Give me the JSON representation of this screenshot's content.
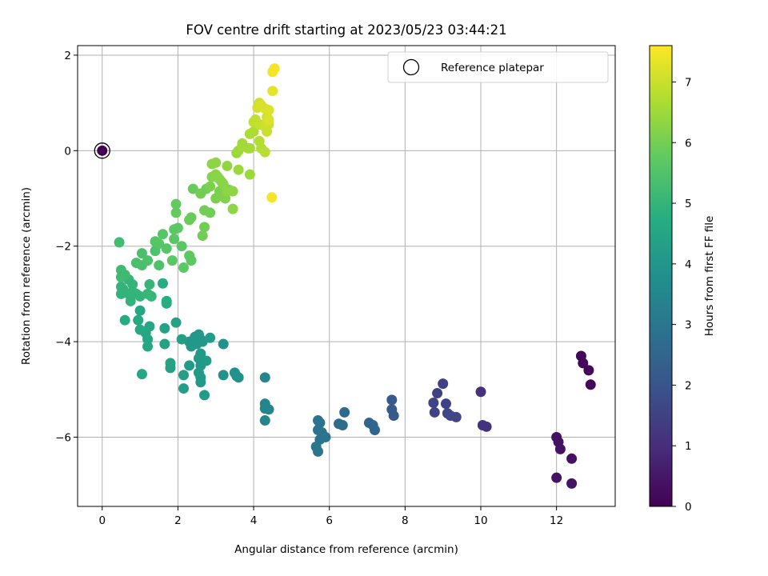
{
  "chart_data": {
    "type": "scatter",
    "title": "FOV centre drift starting at 2023/05/23 03:44:21",
    "xlabel": "Angular distance from reference (arcmin)",
    "ylabel": "Rotation from reference (arcmin)",
    "xlim": [
      -0.65,
      13.55
    ],
    "ylim": [
      -7.45,
      2.2
    ],
    "xticks": [
      0,
      2,
      4,
      6,
      8,
      10,
      12
    ],
    "yticks": [
      -6,
      -4,
      -2,
      0,
      2
    ],
    "grid": true,
    "legend": {
      "placement": "top-right",
      "entries": [
        "Reference platepar"
      ]
    },
    "colorbar": {
      "label": "Hours from first FF file",
      "range": [
        0,
        7.6
      ],
      "ticks": [
        0,
        1,
        2,
        3,
        4,
        5,
        6,
        7
      ],
      "colormap": "viridis"
    },
    "reference_point": {
      "x": 0,
      "y": 0
    },
    "points": [
      [
        0.0,
        0.0,
        0.0
      ],
      [
        12.65,
        -4.3,
        0.15
      ],
      [
        12.7,
        -4.45,
        0.15
      ],
      [
        12.85,
        -4.6,
        0.15
      ],
      [
        12.9,
        -4.9,
        0.15
      ],
      [
        12.0,
        -6.0,
        0.35
      ],
      [
        12.05,
        -6.1,
        0.35
      ],
      [
        12.1,
        -6.25,
        0.35
      ],
      [
        12.4,
        -6.45,
        0.35
      ],
      [
        12.0,
        -6.85,
        0.4
      ],
      [
        12.4,
        -6.97,
        0.4
      ],
      [
        10.0,
        -5.05,
        1.1
      ],
      [
        10.05,
        -5.75,
        1.1
      ],
      [
        10.15,
        -5.78,
        1.1
      ],
      [
        9.0,
        -4.88,
        1.5
      ],
      [
        8.85,
        -5.08,
        1.5
      ],
      [
        8.75,
        -5.28,
        1.55
      ],
      [
        8.78,
        -5.48,
        1.55
      ],
      [
        9.08,
        -5.3,
        1.55
      ],
      [
        9.12,
        -5.5,
        1.6
      ],
      [
        9.2,
        -5.55,
        1.6
      ],
      [
        9.35,
        -5.58,
        1.6
      ],
      [
        7.65,
        -5.22,
        2.15
      ],
      [
        7.65,
        -5.42,
        2.15
      ],
      [
        7.7,
        -5.55,
        2.15
      ],
      [
        7.05,
        -5.7,
        2.5
      ],
      [
        7.15,
        -5.75,
        2.5
      ],
      [
        7.2,
        -5.85,
        2.5
      ],
      [
        6.4,
        -5.48,
        2.7
      ],
      [
        6.25,
        -5.72,
        2.7
      ],
      [
        6.35,
        -5.75,
        2.7
      ],
      [
        5.7,
        -5.65,
        2.9
      ],
      [
        5.75,
        -5.7,
        2.9
      ],
      [
        5.8,
        -5.9,
        2.9
      ],
      [
        5.7,
        -5.85,
        2.9
      ],
      [
        5.9,
        -6.0,
        2.95
      ],
      [
        5.75,
        -6.05,
        2.95
      ],
      [
        5.65,
        -6.2,
        3.0
      ],
      [
        5.7,
        -6.3,
        3.0
      ],
      [
        4.3,
        -4.75,
        3.45
      ],
      [
        4.3,
        -5.3,
        3.5
      ],
      [
        4.3,
        -5.4,
        3.5
      ],
      [
        4.4,
        -5.42,
        3.5
      ],
      [
        4.3,
        -5.65,
        3.5
      ],
      [
        3.2,
        -4.05,
        3.85
      ],
      [
        3.2,
        -4.7,
        3.85
      ],
      [
        3.5,
        -4.65,
        3.85
      ],
      [
        3.6,
        -4.75,
        3.85
      ],
      [
        3.55,
        -4.72,
        3.85
      ],
      [
        2.45,
        -3.9,
        4.05
      ],
      [
        2.55,
        -3.85,
        4.05
      ],
      [
        2.6,
        -3.95,
        4.05
      ],
      [
        2.5,
        -4.05,
        4.05
      ],
      [
        2.35,
        -4.1,
        4.05
      ],
      [
        2.3,
        -4.0,
        4.05
      ],
      [
        2.65,
        -4.0,
        4.05
      ],
      [
        2.6,
        -4.25,
        4.1
      ],
      [
        2.55,
        -4.35,
        4.1
      ],
      [
        2.6,
        -4.5,
        4.1
      ],
      [
        2.55,
        -4.65,
        4.1
      ],
      [
        2.6,
        -4.75,
        4.1
      ],
      [
        2.6,
        -4.85,
        4.1
      ],
      [
        2.3,
        -4.5,
        4.1
      ],
      [
        2.85,
        -3.92,
        4.15
      ],
      [
        2.75,
        -4.4,
        4.15
      ],
      [
        2.7,
        -5.12,
        4.15
      ],
      [
        2.1,
        -3.95,
        4.3
      ],
      [
        2.15,
        -4.7,
        4.3
      ],
      [
        2.15,
        -4.98,
        4.3
      ],
      [
        1.8,
        -4.45,
        4.4
      ],
      [
        1.8,
        -4.55,
        4.4
      ],
      [
        1.65,
        -4.05,
        4.4
      ],
      [
        1.65,
        -3.72,
        4.4
      ],
      [
        1.95,
        -3.6,
        4.4
      ],
      [
        1.15,
        -3.82,
        4.55
      ],
      [
        1.2,
        -3.95,
        4.55
      ],
      [
        1.2,
        -4.1,
        4.55
      ],
      [
        1.05,
        -4.68,
        4.55
      ],
      [
        1.25,
        -3.68,
        4.55
      ],
      [
        1.0,
        -3.35,
        4.55
      ],
      [
        1.0,
        -3.75,
        4.6
      ],
      [
        0.95,
        -3.55,
        4.6
      ],
      [
        0.6,
        -3.55,
        4.7
      ],
      [
        1.6,
        -2.78,
        4.75
      ],
      [
        1.7,
        -3.15,
        4.75
      ],
      [
        1.7,
        -3.2,
        4.75
      ],
      [
        0.5,
        -2.85,
        4.95
      ],
      [
        0.5,
        -3.0,
        4.95
      ],
      [
        0.55,
        -2.9,
        4.95
      ],
      [
        0.75,
        -3.15,
        4.95
      ],
      [
        0.7,
        -3.0,
        4.95
      ],
      [
        0.8,
        -2.95,
        5.0
      ],
      [
        0.9,
        -3.0,
        5.0
      ],
      [
        0.8,
        -2.8,
        5.0
      ],
      [
        0.7,
        -2.7,
        5.0
      ],
      [
        1.0,
        -3.05,
        5.0
      ],
      [
        1.2,
        -3.0,
        5.05
      ],
      [
        1.3,
        -3.05,
        5.05
      ],
      [
        1.25,
        -2.8,
        5.05
      ],
      [
        0.5,
        -2.5,
        5.2
      ],
      [
        0.5,
        -2.65,
        5.2
      ],
      [
        0.6,
        -2.6,
        5.2
      ],
      [
        0.45,
        -1.92,
        5.25
      ],
      [
        0.9,
        -2.35,
        5.4
      ],
      [
        1.05,
        -2.15,
        5.4
      ],
      [
        1.05,
        -2.4,
        5.4
      ],
      [
        1.2,
        -2.3,
        5.45
      ],
      [
        1.4,
        -2.1,
        5.45
      ],
      [
        1.5,
        -2.4,
        5.45
      ],
      [
        1.4,
        -1.9,
        5.6
      ],
      [
        1.5,
        -1.95,
        5.6
      ],
      [
        1.6,
        -1.75,
        5.6
      ],
      [
        1.7,
        -2.05,
        5.6
      ],
      [
        1.9,
        -1.85,
        5.65
      ],
      [
        1.85,
        -2.3,
        5.65
      ],
      [
        2.1,
        -2.0,
        5.65
      ],
      [
        1.9,
        -1.65,
        5.7
      ],
      [
        2.0,
        -1.62,
        5.7
      ],
      [
        2.15,
        -2.45,
        5.7
      ],
      [
        2.3,
        -2.2,
        5.7
      ],
      [
        2.35,
        -2.3,
        5.7
      ],
      [
        1.95,
        -1.12,
        5.8
      ],
      [
        1.95,
        -1.3,
        5.8
      ],
      [
        2.3,
        -1.45,
        5.85
      ],
      [
        2.35,
        -1.4,
        5.85
      ],
      [
        2.4,
        -0.8,
        5.85
      ],
      [
        2.6,
        -0.9,
        5.95
      ],
      [
        2.7,
        -1.25,
        5.95
      ],
      [
        2.75,
        -0.8,
        5.95
      ],
      [
        2.85,
        -1.3,
        5.95
      ],
      [
        2.7,
        -1.6,
        5.95
      ],
      [
        2.65,
        -1.78,
        5.95
      ],
      [
        2.85,
        -0.75,
        6.1
      ],
      [
        3.0,
        -1.0,
        6.1
      ],
      [
        3.05,
        -0.55,
        6.1
      ],
      [
        3.1,
        -0.85,
        6.1
      ],
      [
        3.15,
        -0.65,
        6.15
      ],
      [
        3.35,
        -0.82,
        6.15
      ],
      [
        3.25,
        -1.0,
        6.15
      ],
      [
        2.9,
        -0.55,
        6.2
      ],
      [
        3.0,
        -0.5,
        6.25
      ],
      [
        3.1,
        -0.6,
        6.25
      ],
      [
        3.2,
        -0.7,
        6.25
      ],
      [
        3.3,
        -0.85,
        6.3
      ],
      [
        3.45,
        -0.85,
        6.3
      ],
      [
        3.45,
        -1.22,
        6.3
      ],
      [
        2.9,
        -0.28,
        6.3
      ],
      [
        3.0,
        -0.25,
        6.3
      ],
      [
        3.3,
        -0.32,
        6.35
      ],
      [
        3.55,
        -0.05,
        6.4
      ],
      [
        3.6,
        -0.4,
        6.45
      ],
      [
        3.9,
        -0.5,
        6.45
      ],
      [
        3.6,
        0.0,
        6.5
      ],
      [
        3.7,
        0.1,
        6.55
      ],
      [
        3.7,
        0.15,
        6.55
      ],
      [
        3.9,
        0.05,
        6.6
      ],
      [
        3.85,
        0.05,
        6.6
      ],
      [
        4.0,
        0.4,
        6.7
      ],
      [
        3.9,
        0.35,
        6.7
      ],
      [
        4.15,
        0.2,
        6.75
      ],
      [
        4.2,
        0.05,
        6.75
      ],
      [
        4.3,
        -0.03,
        6.8
      ],
      [
        4.0,
        0.6,
        6.9
      ],
      [
        4.05,
        0.65,
        6.9
      ],
      [
        4.15,
        0.55,
        6.95
      ],
      [
        4.3,
        0.5,
        7.0
      ],
      [
        4.35,
        0.4,
        7.0
      ],
      [
        4.35,
        0.6,
        7.05
      ],
      [
        4.4,
        0.55,
        7.05
      ],
      [
        4.35,
        0.7,
        7.05
      ],
      [
        4.1,
        0.9,
        7.1
      ],
      [
        4.15,
        1.0,
        7.1
      ],
      [
        4.2,
        0.95,
        7.15
      ],
      [
        4.3,
        0.88,
        7.15
      ],
      [
        4.4,
        0.65,
        7.2
      ],
      [
        4.4,
        0.85,
        7.2
      ],
      [
        4.5,
        1.25,
        7.3
      ],
      [
        4.5,
        1.65,
        7.45
      ],
      [
        4.55,
        1.72,
        7.5
      ],
      [
        4.48,
        -0.98,
        7.5
      ]
    ]
  }
}
